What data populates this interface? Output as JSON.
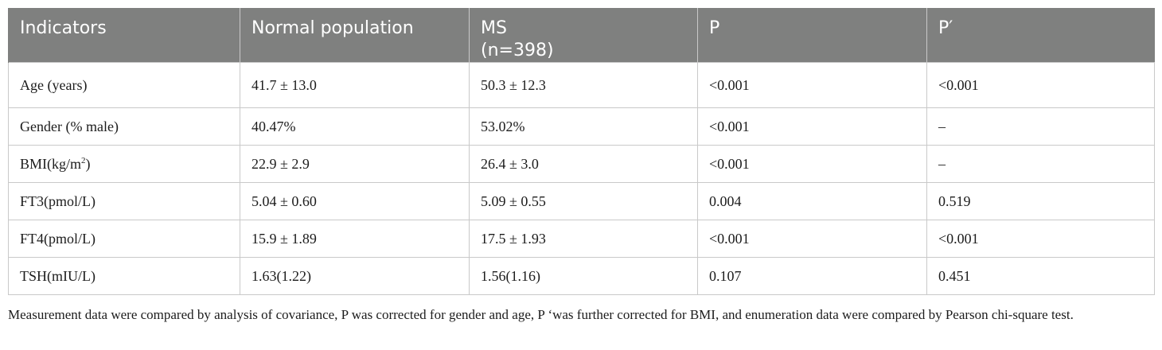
{
  "table": {
    "headers": {
      "indicators": "Indicators",
      "normal": "Normal population",
      "ms_line1": "MS",
      "ms_line2": "(n=398)",
      "p": "P",
      "p_prime": "P′"
    },
    "rows": [
      {
        "indicator": "Age (years)",
        "normal": "41.7 ± 13.0",
        "ms": "50.3 ± 12.3",
        "p": "<0.001",
        "p_prime": "<0.001"
      },
      {
        "indicator": "Gender (% male)",
        "normal": "40.47%",
        "ms": "53.02%",
        "p": "<0.001",
        "p_prime": "–"
      },
      {
        "indicator": "BMI(kg/m",
        "indicator_sup": "2",
        "indicator_end": ")",
        "normal": "22.9 ± 2.9",
        "ms": "26.4 ± 3.0",
        "p": "<0.001",
        "p_prime": "–"
      },
      {
        "indicator": "FT3(pmol/L)",
        "normal": "5.04 ± 0.60",
        "ms": "5.09 ± 0.55",
        "p": "0.004",
        "p_prime": "0.519"
      },
      {
        "indicator": "FT4(pmol/L)",
        "normal": "15.9 ± 1.89",
        "ms": "17.5 ± 1.93",
        "p": "<0.001",
        "p_prime": "<0.001"
      },
      {
        "indicator": "TSH(mIU/L)",
        "normal": "1.63(1.22)",
        "ms": "1.56(1.16)",
        "p": "0.107",
        "p_prime": "0.451"
      }
    ]
  },
  "footnote": "Measurement data were compared by analysis of covariance, P was corrected for gender and age, P ‘was further corrected for BMI, and enumeration data were compared by Pearson chi-square test."
}
